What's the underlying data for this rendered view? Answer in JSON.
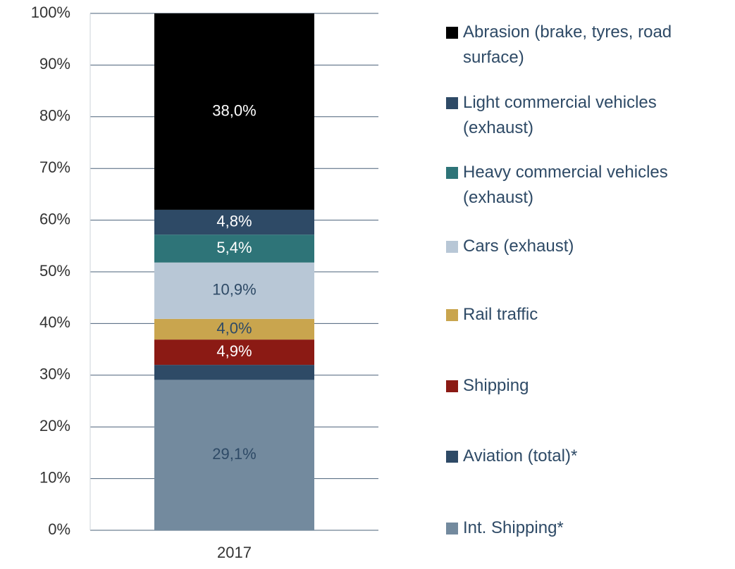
{
  "chart_data": {
    "type": "stacked_bar",
    "categories": [
      "2017"
    ],
    "series": [
      {
        "name": "Int. Shipping*",
        "color": "#738a9e",
        "values": [
          29.1
        ],
        "value_labels": [
          "29,1%"
        ]
      },
      {
        "name": "Aviation (total)*",
        "color": "#2e4a66",
        "values": [
          2.9
        ]
      },
      {
        "name": "Shipping",
        "color": "#8b1a14",
        "values": [
          4.9
        ],
        "value_labels": [
          "4,9%"
        ]
      },
      {
        "name": "Rail traffic",
        "color": "#c9a54e",
        "values": [
          4.0
        ],
        "value_labels": [
          "4,0%"
        ]
      },
      {
        "name": "Cars (exhaust)",
        "color": "#b8c7d6",
        "values": [
          10.9
        ],
        "value_labels": [
          "10,9%"
        ]
      },
      {
        "name": "Heavy commercial vehicles (exhaust)",
        "color": "#2e7478",
        "values": [
          5.4
        ],
        "value_labels": [
          "5,4%"
        ]
      },
      {
        "name": "Light commercial vehicles (exhaust)",
        "color": "#2e4a66",
        "values": [
          4.8
        ],
        "value_labels": [
          "4,8%"
        ]
      },
      {
        "name": "Abrasion (brake, tyres, road surface)",
        "color": "#000000",
        "values": [
          38.0
        ],
        "value_labels": [
          "38,0%"
        ]
      }
    ],
    "ylim": [
      0,
      100
    ],
    "yticks": [
      {
        "value": 0,
        "label": "0%"
      },
      {
        "value": 10,
        "label": "10%"
      },
      {
        "value": 20,
        "label": "20%"
      },
      {
        "value": 30,
        "label": "30%"
      },
      {
        "value": 40,
        "label": "40%"
      },
      {
        "value": 50,
        "label": "50%"
      },
      {
        "value": 60,
        "label": "60%"
      },
      {
        "value": 70,
        "label": "70%"
      },
      {
        "value": 80,
        "label": "80%"
      },
      {
        "value": 90,
        "label": "90%"
      },
      {
        "value": 100,
        "label": "100%"
      }
    ],
    "grid": true,
    "legend": "right"
  }
}
